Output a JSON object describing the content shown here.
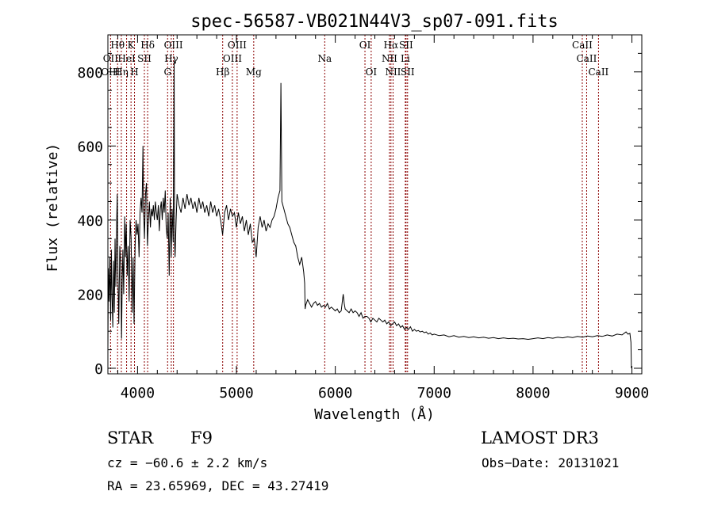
{
  "chart_data": {
    "type": "line",
    "title": "spec-56587-VB021N44V3_sp07-091.fits",
    "xlabel": "Wavelength (Å)",
    "ylabel": "Flux (relative)",
    "xlim": [
      3700,
      9100
    ],
    "ylim": [
      -15,
      900
    ],
    "xticks": [
      4000,
      5000,
      6000,
      7000,
      8000,
      9000
    ],
    "yticks": [
      0,
      200,
      400,
      600,
      800
    ],
    "grid": false,
    "series": [
      {
        "name": "spectrum",
        "points": [
          [
            3700,
            50
          ],
          [
            3705,
            270
          ],
          [
            3712,
            180
          ],
          [
            3720,
            300
          ],
          [
            3728,
            130
          ],
          [
            3735,
            320
          ],
          [
            3742,
            200
          ],
          [
            3750,
            110
          ],
          [
            3758,
            290
          ],
          [
            3765,
            150
          ],
          [
            3772,
            350
          ],
          [
            3780,
            220
          ],
          [
            3790,
            410
          ],
          [
            3795,
            470
          ],
          [
            3802,
            250
          ],
          [
            3810,
            120
          ],
          [
            3820,
            330
          ],
          [
            3830,
            280
          ],
          [
            3838,
            80
          ],
          [
            3845,
            240
          ],
          [
            3852,
            320
          ],
          [
            3860,
            200
          ],
          [
            3870,
            410
          ],
          [
            3878,
            300
          ],
          [
            3885,
            390
          ],
          [
            3895,
            250
          ],
          [
            3905,
            330
          ],
          [
            3915,
            180
          ],
          [
            3925,
            400
          ],
          [
            3935,
            350
          ],
          [
            3945,
            150
          ],
          [
            3955,
            300
          ],
          [
            3965,
            120
          ],
          [
            3975,
            330
          ],
          [
            3985,
            400
          ],
          [
            3995,
            360
          ],
          [
            4005,
            390
          ],
          [
            4015,
            300
          ],
          [
            4025,
            420
          ],
          [
            4035,
            460
          ],
          [
            4045,
            420
          ],
          [
            4055,
            600
          ],
          [
            4060,
            430
          ],
          [
            4070,
            350
          ],
          [
            4080,
            470
          ],
          [
            4090,
            500
          ],
          [
            4100,
            330
          ],
          [
            4110,
            400
          ],
          [
            4120,
            450
          ],
          [
            4130,
            380
          ],
          [
            4140,
            430
          ],
          [
            4150,
            410
          ],
          [
            4160,
            440
          ],
          [
            4170,
            400
          ],
          [
            4180,
            450
          ],
          [
            4190,
            420
          ],
          [
            4200,
            400
          ],
          [
            4210,
            440
          ],
          [
            4220,
            370
          ],
          [
            4230,
            430
          ],
          [
            4240,
            450
          ],
          [
            4250,
            400
          ],
          [
            4260,
            460
          ],
          [
            4270,
            420
          ],
          [
            4280,
            480
          ],
          [
            4290,
            380
          ],
          [
            4300,
            350
          ],
          [
            4310,
            420
          ],
          [
            4320,
            250
          ],
          [
            4330,
            460
          ],
          [
            4340,
            300
          ],
          [
            4350,
            430
          ],
          [
            4360,
            340
          ],
          [
            4370,
            830
          ],
          [
            4375,
            340
          ],
          [
            4380,
            300
          ],
          [
            4390,
            400
          ],
          [
            4400,
            470
          ],
          [
            4420,
            440
          ],
          [
            4440,
            420
          ],
          [
            4460,
            460
          ],
          [
            4480,
            430
          ],
          [
            4500,
            470
          ],
          [
            4520,
            440
          ],
          [
            4540,
            460
          ],
          [
            4560,
            430
          ],
          [
            4580,
            450
          ],
          [
            4600,
            420
          ],
          [
            4620,
            460
          ],
          [
            4640,
            430
          ],
          [
            4660,
            450
          ],
          [
            4680,
            420
          ],
          [
            4700,
            440
          ],
          [
            4720,
            410
          ],
          [
            4740,
            450
          ],
          [
            4760,
            420
          ],
          [
            4780,
            440
          ],
          [
            4800,
            410
          ],
          [
            4820,
            430
          ],
          [
            4840,
            400
          ],
          [
            4860,
            360
          ],
          [
            4880,
            420
          ],
          [
            4900,
            440
          ],
          [
            4920,
            400
          ],
          [
            4940,
            430
          ],
          [
            4960,
            410
          ],
          [
            4980,
            420
          ],
          [
            5000,
            380
          ],
          [
            5020,
            420
          ],
          [
            5040,
            390
          ],
          [
            5060,
            410
          ],
          [
            5080,
            370
          ],
          [
            5100,
            400
          ],
          [
            5120,
            360
          ],
          [
            5140,
            390
          ],
          [
            5160,
            340
          ],
          [
            5180,
            350
          ],
          [
            5200,
            300
          ],
          [
            5220,
            380
          ],
          [
            5240,
            410
          ],
          [
            5260,
            380
          ],
          [
            5280,
            400
          ],
          [
            5300,
            370
          ],
          [
            5320,
            390
          ],
          [
            5340,
            380
          ],
          [
            5360,
            400
          ],
          [
            5380,
            410
          ],
          [
            5400,
            430
          ],
          [
            5420,
            460
          ],
          [
            5440,
            480
          ],
          [
            5450,
            770
          ],
          [
            5460,
            450
          ],
          [
            5480,
            430
          ],
          [
            5500,
            410
          ],
          [
            5520,
            390
          ],
          [
            5540,
            380
          ],
          [
            5560,
            360
          ],
          [
            5580,
            340
          ],
          [
            5600,
            330
          ],
          [
            5620,
            300
          ],
          [
            5640,
            280
          ],
          [
            5660,
            300
          ],
          [
            5680,
            260
          ],
          [
            5690,
            230
          ],
          [
            5695,
            160
          ],
          [
            5700,
            170
          ],
          [
            5720,
            185
          ],
          [
            5740,
            175
          ],
          [
            5760,
            165
          ],
          [
            5780,
            175
          ],
          [
            5800,
            180
          ],
          [
            5820,
            170
          ],
          [
            5840,
            175
          ],
          [
            5860,
            165
          ],
          [
            5880,
            170
          ],
          [
            5900,
            165
          ],
          [
            5920,
            175
          ],
          [
            5940,
            160
          ],
          [
            5960,
            165
          ],
          [
            5980,
            160
          ],
          [
            6000,
            155
          ],
          [
            6020,
            160
          ],
          [
            6040,
            150
          ],
          [
            6060,
            155
          ],
          [
            6080,
            200
          ],
          [
            6090,
            175
          ],
          [
            6100,
            160
          ],
          [
            6120,
            155
          ],
          [
            6140,
            150
          ],
          [
            6160,
            160
          ],
          [
            6180,
            150
          ],
          [
            6200,
            155
          ],
          [
            6220,
            150
          ],
          [
            6240,
            140
          ],
          [
            6260,
            150
          ],
          [
            6280,
            135
          ],
          [
            6300,
            140
          ],
          [
            6320,
            140
          ],
          [
            6340,
            135
          ],
          [
            6360,
            125
          ],
          [
            6380,
            135
          ],
          [
            6400,
            130
          ],
          [
            6420,
            125
          ],
          [
            6440,
            135
          ],
          [
            6460,
            130
          ],
          [
            6480,
            125
          ],
          [
            6500,
            130
          ],
          [
            6520,
            120
          ],
          [
            6540,
            125
          ],
          [
            6560,
            115
          ],
          [
            6580,
            120
          ],
          [
            6600,
            125
          ],
          [
            6620,
            115
          ],
          [
            6640,
            120
          ],
          [
            6660,
            110
          ],
          [
            6680,
            115
          ],
          [
            6700,
            105
          ],
          [
            6720,
            110
          ],
          [
            6740,
            105
          ],
          [
            6760,
            112
          ],
          [
            6780,
            100
          ],
          [
            6800,
            105
          ],
          [
            6820,
            100
          ],
          [
            6840,
            102
          ],
          [
            6860,
            98
          ],
          [
            6880,
            100
          ],
          [
            6900,
            96
          ],
          [
            6920,
            98
          ],
          [
            6940,
            92
          ],
          [
            6960,
            95
          ],
          [
            6980,
            90
          ],
          [
            7000,
            92
          ],
          [
            7050,
            88
          ],
          [
            7100,
            90
          ],
          [
            7150,
            85
          ],
          [
            7200,
            88
          ],
          [
            7250,
            84
          ],
          [
            7300,
            86
          ],
          [
            7350,
            83
          ],
          [
            7400,
            85
          ],
          [
            7450,
            82
          ],
          [
            7500,
            84
          ],
          [
            7550,
            81
          ],
          [
            7600,
            83
          ],
          [
            7650,
            80
          ],
          [
            7700,
            82
          ],
          [
            7750,
            80
          ],
          [
            7800,
            81
          ],
          [
            7850,
            79
          ],
          [
            7900,
            80
          ],
          [
            7950,
            78
          ],
          [
            8000,
            80
          ],
          [
            8050,
            82
          ],
          [
            8100,
            80
          ],
          [
            8150,
            83
          ],
          [
            8200,
            81
          ],
          [
            8250,
            84
          ],
          [
            8300,
            82
          ],
          [
            8350,
            85
          ],
          [
            8400,
            83
          ],
          [
            8450,
            86
          ],
          [
            8500,
            84
          ],
          [
            8550,
            87
          ],
          [
            8600,
            85
          ],
          [
            8650,
            88
          ],
          [
            8700,
            86
          ],
          [
            8750,
            90
          ],
          [
            8800,
            87
          ],
          [
            8850,
            92
          ],
          [
            8900,
            90
          ],
          [
            8940,
            98
          ],
          [
            8960,
            92
          ],
          [
            8980,
            94
          ],
          [
            8990,
            70
          ],
          [
            8995,
            0
          ]
        ]
      }
    ],
    "lines": [
      {
        "label": "Hθ",
        "x": 3798,
        "row": 0
      },
      {
        "label": "OII",
        "x": 3727,
        "row": 1
      },
      {
        "label": "OIII",
        "x": 3727,
        "row": 2
      },
      {
        "label": "K",
        "x": 3934,
        "row": 0
      },
      {
        "label": "HeI",
        "x": 3889,
        "row": 1
      },
      {
        "label": "Hη",
        "x": 3836,
        "row": 2
      },
      {
        "label": "Hδ",
        "x": 4102,
        "row": 0
      },
      {
        "label": "SII",
        "x": 4069,
        "row": 1
      },
      {
        "label": "H",
        "x": 3969,
        "row": 2
      },
      {
        "label": "OIII",
        "x": 4363,
        "row": 0
      },
      {
        "label": "Hγ",
        "x": 4341,
        "row": 1
      },
      {
        "label": "G",
        "x": 4304,
        "row": 2
      },
      {
        "label": "OIII",
        "x": 5007,
        "row": 0
      },
      {
        "label": "OIII",
        "x": 4959,
        "row": 1
      },
      {
        "label": "Hβ",
        "x": 4861,
        "row": 2
      },
      {
        "label": "Mg",
        "x": 5175,
        "row": 2
      },
      {
        "label": "Na",
        "x": 5893,
        "row": 1
      },
      {
        "label": "OI",
        "x": 6300,
        "row": 0
      },
      {
        "label": "OI",
        "x": 6363,
        "row": 2
      },
      {
        "label": "Hα",
        "x": 6563,
        "row": 0
      },
      {
        "label": "SII",
        "x": 6716,
        "row": 0
      },
      {
        "label": "NII",
        "x": 6548,
        "row": 1
      },
      {
        "label": "Li",
        "x": 6708,
        "row": 1
      },
      {
        "label": "NII",
        "x": 6584,
        "row": 2
      },
      {
        "label": "SII",
        "x": 6731,
        "row": 2
      },
      {
        "label": "CaII",
        "x": 8498,
        "row": 0
      },
      {
        "label": "CaII",
        "x": 8542,
        "row": 1
      },
      {
        "label": "CaII",
        "x": 8662,
        "row": 2
      }
    ]
  },
  "info": {
    "object_class": "STAR",
    "subclass": "F9",
    "survey": "LAMOST DR3",
    "cz": "cz = −60.6 ± 2.2 km/s",
    "obs_date": "Obs−Date: 20131021",
    "coords": "RA =  23.65969, DEC =  43.27419"
  }
}
